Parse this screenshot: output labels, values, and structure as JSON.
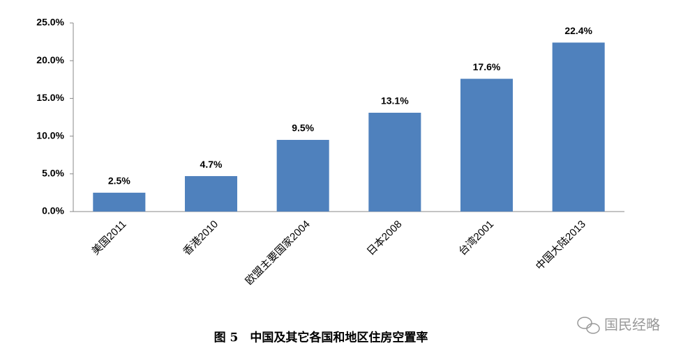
{
  "chart_data": {
    "type": "bar",
    "caption": "图 5　中国及其它各国和地区住房空置率",
    "watermark": "国民经略",
    "categories": [
      "美国2011",
      "香港2010",
      "欧盟主要国家2004",
      "日本2008",
      "台湾2001",
      "中国大陆2013"
    ],
    "values": [
      2.5,
      4.7,
      9.5,
      13.1,
      17.6,
      22.4
    ],
    "value_labels": [
      "2.5%",
      "4.7%",
      "9.5%",
      "13.1%",
      "17.6%",
      "22.4%"
    ],
    "color": "#4f81bd",
    "ylim": [
      0,
      25
    ],
    "yticks": [
      {
        "value": 0,
        "label": "0.0%"
      },
      {
        "value": 5,
        "label": "5.0%"
      },
      {
        "value": 10,
        "label": "10.0%"
      },
      {
        "value": 15,
        "label": "15.0%"
      },
      {
        "value": 20,
        "label": "20.0%"
      },
      {
        "value": 25,
        "label": "25.0%"
      }
    ]
  }
}
